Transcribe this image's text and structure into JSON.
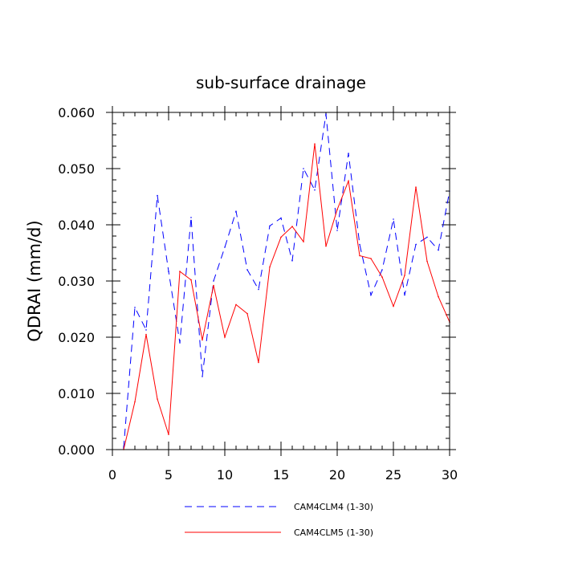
{
  "chart_data": {
    "type": "line",
    "title": "sub-surface drainage",
    "xlabel": "",
    "ylabel": "QDRAI  (mm/d)",
    "xlim": [
      0,
      30
    ],
    "ylim": [
      0,
      0.06
    ],
    "xticks": [
      0,
      5,
      10,
      15,
      20,
      25,
      30
    ],
    "xtick_labels": [
      "0",
      "5",
      "10",
      "15",
      "20",
      "25",
      "30"
    ],
    "yticks": [
      0,
      0.01,
      0.02,
      0.03,
      0.04,
      0.05,
      0.06
    ],
    "ytick_labels": [
      "0.000",
      "0.010",
      "0.020",
      "0.030",
      "0.040",
      "0.050",
      "0.060"
    ],
    "grid": false,
    "legend_position": "bottom",
    "x": [
      1,
      2,
      3,
      4,
      5,
      6,
      7,
      8,
      9,
      10,
      11,
      12,
      13,
      14,
      15,
      16,
      17,
      18,
      19,
      20,
      21,
      22,
      23,
      24,
      25,
      26,
      27,
      28,
      29,
      30
    ],
    "series": [
      {
        "name": "CAM4CLM4 (1-30)",
        "color": "#0000ff",
        "style": "dashed",
        "values": [
          0.0003,
          0.0253,
          0.0213,
          0.0452,
          0.0317,
          0.019,
          0.0413,
          0.013,
          0.03,
          0.036,
          0.0424,
          0.032,
          0.0285,
          0.0398,
          0.0412,
          0.0336,
          0.05,
          0.0462,
          0.0597,
          0.039,
          0.0527,
          0.0365,
          0.0275,
          0.032,
          0.041,
          0.0275,
          0.0365,
          0.0378,
          0.0355,
          0.046
        ]
      },
      {
        "name": "CAM4CLM5 (1-30)",
        "color": "#ff0000",
        "style": "solid",
        "values": [
          0.0,
          0.0085,
          0.0205,
          0.009,
          0.0027,
          0.0317,
          0.0302,
          0.0195,
          0.0292,
          0.02,
          0.0258,
          0.0242,
          0.0155,
          0.0325,
          0.0378,
          0.0397,
          0.037,
          0.0544,
          0.0362,
          0.0427,
          0.0478,
          0.0345,
          0.034,
          0.0307,
          0.0255,
          0.031,
          0.0467,
          0.0335,
          0.0272,
          0.0227
        ]
      }
    ]
  }
}
